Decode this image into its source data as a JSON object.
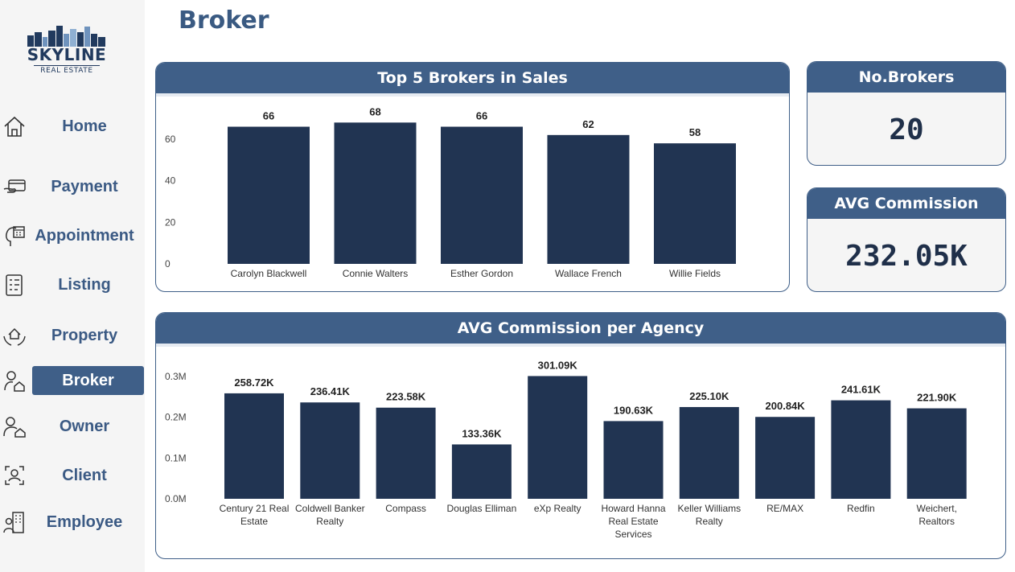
{
  "brand": {
    "name": "SKYLINE",
    "tagline": "REAL ESTATE"
  },
  "page": {
    "title": "Broker"
  },
  "sidebar": {
    "items": [
      {
        "label": "Home",
        "icon": "home-icon",
        "active": false
      },
      {
        "label": "Payment",
        "icon": "payment-icon",
        "active": false
      },
      {
        "label": "Appointment",
        "icon": "appointment-icon",
        "active": false
      },
      {
        "label": "Listing",
        "icon": "listing-icon",
        "active": false
      },
      {
        "label": "Property",
        "icon": "property-icon",
        "active": false
      },
      {
        "label": "Broker",
        "icon": "broker-icon",
        "active": true
      },
      {
        "label": "Owner",
        "icon": "owner-icon",
        "active": false
      },
      {
        "label": "Client",
        "icon": "client-icon",
        "active": false
      },
      {
        "label": "Employee",
        "icon": "employee-icon",
        "active": false
      }
    ]
  },
  "kpis": {
    "brokers": {
      "title": "No.Brokers",
      "value": "20"
    },
    "avg_commission": {
      "title": "AVG Commission",
      "value": "232.05K"
    }
  },
  "colors": {
    "accent": "#3f5f88",
    "bar": "#213452",
    "title": "#3a5a82"
  },
  "chart_data": [
    {
      "type": "bar",
      "title": "Top 5 Brokers in Sales",
      "categories": [
        "Carolyn Blackwell",
        "Connie Walters",
        "Esther Gordon",
        "Wallace French",
        "Willie Fields"
      ],
      "values": [
        66,
        68,
        66,
        62,
        58
      ],
      "data_labels": [
        "66",
        "68",
        "66",
        "62",
        "58"
      ],
      "yticks": [
        0,
        20,
        40,
        60
      ],
      "ytick_labels": [
        "0",
        "20",
        "40",
        "60"
      ],
      "ylim": [
        0,
        72
      ],
      "grid": false,
      "legend": "none"
    },
    {
      "type": "bar",
      "title": "AVG Commission per Agency",
      "categories": [
        [
          "Century 21 Real",
          "Estate"
        ],
        [
          "Coldwell Banker",
          "Realty"
        ],
        [
          "Compass"
        ],
        [
          "Douglas Elliman"
        ],
        [
          "eXp Realty"
        ],
        [
          "Howard Hanna",
          "Real Estate",
          "Services"
        ],
        [
          "Keller Williams",
          "Realty"
        ],
        [
          "RE/MAX"
        ],
        [
          "Redfin"
        ],
        [
          "Weichert,",
          "Realtors"
        ]
      ],
      "values": [
        258720,
        236410,
        223580,
        133360,
        301090,
        190630,
        225100,
        200840,
        241610,
        221900
      ],
      "data_labels": [
        "258.72K",
        "236.41K",
        "223.58K",
        "133.36K",
        "301.09K",
        "190.63K",
        "225.10K",
        "200.84K",
        "241.61K",
        "221.90K"
      ],
      "yticks": [
        0,
        100000,
        200000,
        300000
      ],
      "ytick_labels": [
        "0.0M",
        "0.1M",
        "0.2M",
        "0.3M"
      ],
      "ylim": [
        0,
        300000
      ],
      "grid": false,
      "legend": "none"
    }
  ]
}
